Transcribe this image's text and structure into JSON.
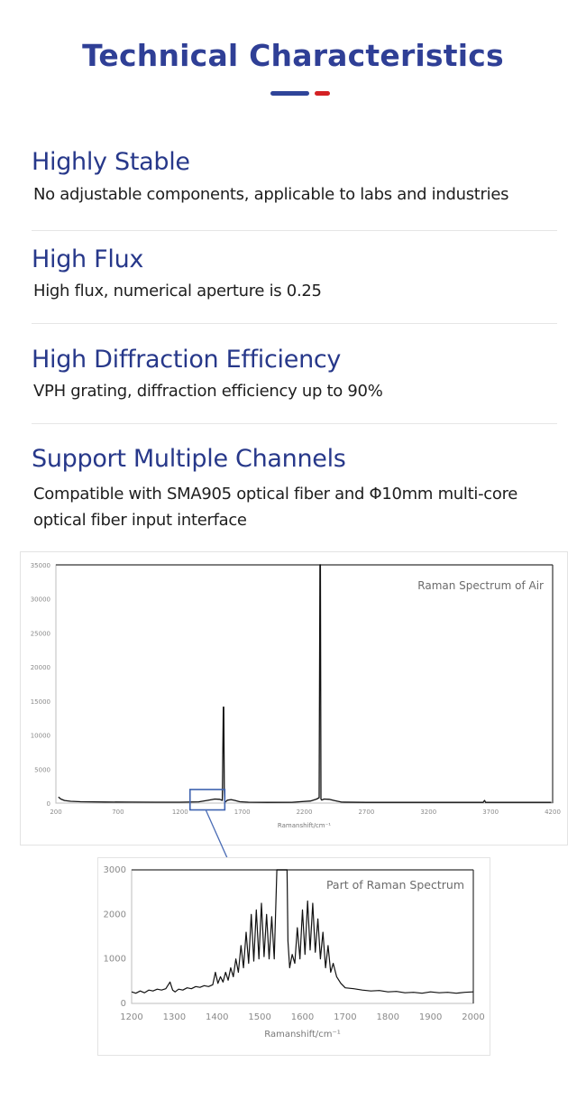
{
  "header": {
    "title": "Technical Characteristics",
    "accent_colors": {
      "primary": "#2f4499",
      "secondary": "#d42124"
    }
  },
  "features": [
    {
      "title": "Highly Stable",
      "description": "No adjustable components, applicable to labs and industries"
    },
    {
      "title": "High Flux",
      "description": "High flux, numerical aperture is 0.25"
    },
    {
      "title": "High Diffraction Efficiency",
      "description": "VPH grating, diffraction efficiency up to 90%"
    },
    {
      "title": "Support Multiple Channels",
      "description": "Compatible with SMA905 optical fiber and Φ10mm multi-core optical fiber input interface"
    }
  ],
  "chart_data": [
    {
      "type": "line",
      "title": "Raman Spectrum of Air",
      "xlabel": "Ramanshift/cm⁻¹",
      "ylabel": "",
      "xlim": [
        200,
        4200
      ],
      "ylim": [
        0,
        35000
      ],
      "x_ticks": [
        200,
        700,
        1200,
        1700,
        2200,
        2700,
        3200,
        3700,
        4200
      ],
      "y_ticks": [
        0,
        5000,
        10000,
        15000,
        20000,
        25000,
        30000,
        35000
      ],
      "grid": false,
      "legend": "none",
      "annotations": [
        {
          "type": "zoom-box",
          "x_range": [
            1280,
            1560
          ],
          "y_range": [
            -1000,
            2000
          ],
          "color": "#3f63b0",
          "note": "region magnified in second chart"
        }
      ],
      "series": [
        {
          "name": "Raman Spectrum of Air",
          "x": [
            220,
            240,
            270,
            320,
            400,
            600,
            800,
            1000,
            1200,
            1350,
            1420,
            1480,
            1520,
            1540,
            1548,
            1552,
            1556,
            1560,
            1566,
            1580,
            1610,
            1640,
            1680,
            1750,
            1900,
            2100,
            2250,
            2300,
            2320,
            2326,
            2330,
            2334,
            2340,
            2360,
            2400,
            2440,
            2500,
            2700,
            3000,
            3300,
            3640,
            3652,
            3660,
            3700,
            4000,
            4190
          ],
          "y": [
            900,
            600,
            380,
            260,
            200,
            160,
            140,
            130,
            130,
            180,
            400,
            600,
            560,
            400,
            14100,
            14100,
            2000,
            120,
            180,
            420,
            520,
            400,
            200,
            130,
            110,
            120,
            300,
            600,
            800,
            35000,
            35000,
            600,
            450,
            600,
            560,
            380,
            150,
            110,
            100,
            100,
            100,
            400,
            100,
            100,
            100,
            100
          ]
        }
      ]
    },
    {
      "type": "line",
      "title": "Part of Raman Spectrum",
      "xlabel": "Ramanshift/cm⁻¹",
      "ylabel": "",
      "xlim": [
        1200,
        2000
      ],
      "ylim": [
        0,
        3000
      ],
      "x_ticks": [
        1200,
        1300,
        1400,
        1500,
        1600,
        1700,
        1800,
        1900,
        2000
      ],
      "y_ticks": [
        0,
        1000,
        2000,
        3000
      ],
      "grid": false,
      "legend": "none",
      "series": [
        {
          "name": "Part of Raman Spectrum",
          "x": [
            1200,
            1210,
            1220,
            1230,
            1240,
            1250,
            1260,
            1270,
            1280,
            1290,
            1296,
            1302,
            1310,
            1320,
            1330,
            1340,
            1350,
            1360,
            1370,
            1380,
            1390,
            1396,
            1402,
            1408,
            1414,
            1420,
            1426,
            1432,
            1438,
            1444,
            1450,
            1456,
            1462,
            1468,
            1474,
            1480,
            1486,
            1492,
            1498,
            1504,
            1510,
            1516,
            1522,
            1528,
            1534,
            1540,
            1546,
            1550,
            1556,
            1558,
            1564,
            1566,
            1570,
            1576,
            1582,
            1588,
            1594,
            1600,
            1606,
            1612,
            1618,
            1624,
            1630,
            1636,
            1642,
            1648,
            1654,
            1660,
            1666,
            1672,
            1680,
            1690,
            1700,
            1720,
            1740,
            1760,
            1780,
            1800,
            1820,
            1840,
            1860,
            1880,
            1900,
            1920,
            1940,
            1960,
            1980,
            2000
          ],
          "y": [
            260,
            230,
            280,
            240,
            300,
            280,
            320,
            300,
            330,
            480,
            300,
            260,
            320,
            300,
            350,
            330,
            380,
            360,
            400,
            380,
            420,
            700,
            450,
            600,
            480,
            700,
            520,
            800,
            600,
            1000,
            700,
            1300,
            800,
            1600,
            900,
            2000,
            950,
            2100,
            1000,
            2250,
            1050,
            2000,
            1000,
            1950,
            1000,
            3000,
            3000,
            3000,
            3000,
            3000,
            3000,
            1400,
            800,
            1100,
            900,
            1700,
            1000,
            2100,
            1100,
            2300,
            1200,
            2250,
            1150,
            1900,
            1000,
            1600,
            800,
            1300,
            700,
            900,
            600,
            450,
            350,
            330,
            300,
            280,
            290,
            260,
            270,
            240,
            250,
            230,
            260,
            240,
            250,
            230,
            250,
            260
          ]
        }
      ]
    }
  ]
}
